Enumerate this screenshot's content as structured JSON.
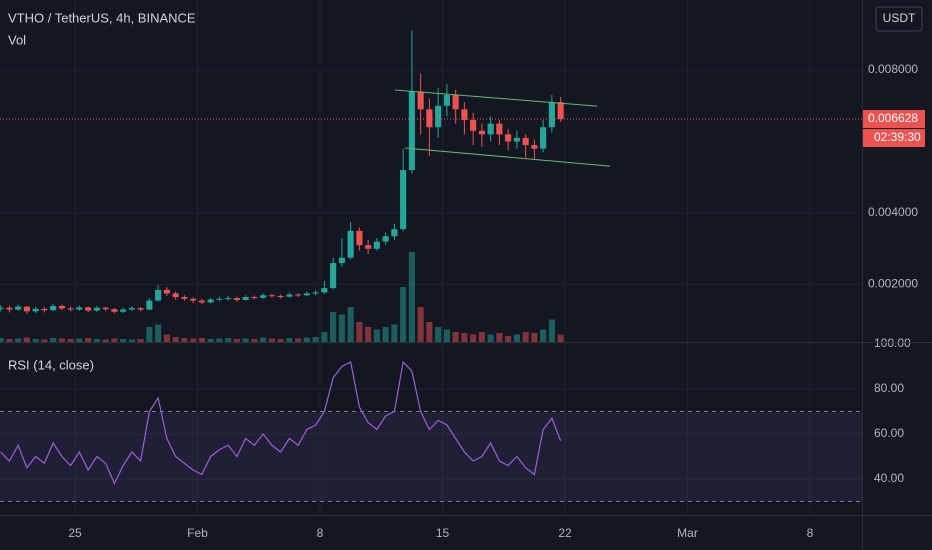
{
  "header": {
    "symbol": "VTHO / TetherUS, 4h, BINANCE",
    "volume_label": "Vol",
    "currency": "USDT"
  },
  "chart_data": [
    {
      "type": "candlestick",
      "x": [
        20.75,
        21.25,
        21.75,
        22.25,
        22.75,
        23.25,
        23.75,
        24.25,
        24.75,
        25.25,
        25.75,
        26.25,
        26.75,
        27.25,
        27.75,
        28.25,
        28.75,
        29.25,
        29.75,
        30.25,
        30.75,
        31.25,
        31.75,
        32.25,
        32.75,
        33.25,
        33.75,
        34.25,
        34.75,
        35.25,
        35.75,
        36.25,
        36.75,
        37.25,
        37.75,
        38.25,
        38.75,
        39.25,
        39.75,
        40.25,
        40.75,
        41.25,
        41.75,
        42.25,
        42.75,
        43.25,
        43.75,
        44.25,
        44.75,
        45.25,
        45.75,
        46.25,
        46.75,
        47.25,
        47.75,
        48.25,
        48.75,
        49.25,
        49.75,
        50.25,
        50.75,
        51.25,
        51.75,
        52.25,
        52.75
      ],
      "open": [
        0.00132,
        0.00135,
        0.0013,
        0.00138,
        0.00125,
        0.00132,
        0.00128,
        0.0014,
        0.00133,
        0.0013,
        0.00136,
        0.00127,
        0.00135,
        0.00131,
        0.00124,
        0.0013,
        0.00134,
        0.0013,
        0.00155,
        0.00185,
        0.00175,
        0.00165,
        0.0016,
        0.00155,
        0.0015,
        0.00158,
        0.0016,
        0.00162,
        0.00157,
        0.00165,
        0.00163,
        0.0017,
        0.00168,
        0.00166,
        0.00172,
        0.0017,
        0.00175,
        0.00178,
        0.0019,
        0.0026,
        0.00275,
        0.0035,
        0.0031,
        0.003,
        0.0032,
        0.00335,
        0.00355,
        0.0052,
        0.0074,
        0.0069,
        0.0064,
        0.007,
        0.0073,
        0.0069,
        0.0066,
        0.0063,
        0.0062,
        0.0065,
        0.0062,
        0.006,
        0.0061,
        0.0059,
        0.0058,
        0.0064,
        0.0071
      ],
      "high": [
        0.00142,
        0.0014,
        0.00144,
        0.0014,
        0.00138,
        0.00136,
        0.00146,
        0.00144,
        0.00138,
        0.00141,
        0.00139,
        0.0014,
        0.00138,
        0.00134,
        0.00135,
        0.00139,
        0.00137,
        0.00162,
        0.00198,
        0.00192,
        0.0018,
        0.0017,
        0.00164,
        0.0016,
        0.00163,
        0.00166,
        0.00168,
        0.00166,
        0.0017,
        0.00169,
        0.00175,
        0.00174,
        0.00172,
        0.00177,
        0.00176,
        0.0018,
        0.00184,
        0.0021,
        0.00275,
        0.0033,
        0.00375,
        0.0036,
        0.00325,
        0.0033,
        0.00345,
        0.0037,
        0.0058,
        0.0091,
        0.0079,
        0.0072,
        0.0075,
        0.0076,
        0.00745,
        0.0071,
        0.0068,
        0.0065,
        0.0067,
        0.0066,
        0.00635,
        0.0063,
        0.0062,
        0.00605,
        0.0066,
        0.0073,
        0.00725
      ],
      "low": [
        0.00125,
        0.00122,
        0.00127,
        0.00118,
        0.0012,
        0.00122,
        0.00126,
        0.00128,
        0.00125,
        0.00127,
        0.00122,
        0.00124,
        0.00126,
        0.00119,
        0.0012,
        0.00127,
        0.00125,
        0.00128,
        0.00152,
        0.00168,
        0.00158,
        0.00154,
        0.00148,
        0.00145,
        0.00147,
        0.00154,
        0.00156,
        0.00152,
        0.00155,
        0.00158,
        0.0016,
        0.00163,
        0.00161,
        0.00163,
        0.00165,
        0.00167,
        0.0017,
        0.00174,
        0.00188,
        0.0025,
        0.0027,
        0.00295,
        0.00285,
        0.00295,
        0.0031,
        0.00325,
        0.0035,
        0.0051,
        0.0062,
        0.0056,
        0.0061,
        0.0067,
        0.0065,
        0.0062,
        0.0059,
        0.00585,
        0.006,
        0.0059,
        0.00575,
        0.0058,
        0.00555,
        0.0055,
        0.0057,
        0.00625,
        0.00655
      ],
      "close": [
        0.00135,
        0.0013,
        0.00138,
        0.00125,
        0.00132,
        0.00128,
        0.0014,
        0.00133,
        0.0013,
        0.00136,
        0.00127,
        0.00135,
        0.00131,
        0.00124,
        0.0013,
        0.00134,
        0.0013,
        0.00155,
        0.00185,
        0.00175,
        0.00165,
        0.0016,
        0.00155,
        0.0015,
        0.00158,
        0.0016,
        0.00162,
        0.00157,
        0.00165,
        0.00163,
        0.0017,
        0.00168,
        0.00166,
        0.00172,
        0.0017,
        0.00175,
        0.00178,
        0.0019,
        0.0026,
        0.00275,
        0.0035,
        0.0031,
        0.003,
        0.0032,
        0.00335,
        0.00355,
        0.0052,
        0.0074,
        0.0069,
        0.0064,
        0.007,
        0.0073,
        0.0069,
        0.0066,
        0.0063,
        0.0062,
        0.0065,
        0.0062,
        0.006,
        0.0061,
        0.0059,
        0.0058,
        0.0064,
        0.0071,
        0.006628
      ],
      "volume": [
        8,
        6,
        7,
        9,
        6,
        5,
        8,
        7,
        6,
        7,
        8,
        6,
        5,
        7,
        6,
        5,
        6,
        30,
        35,
        15,
        10,
        8,
        7,
        8,
        6,
        7,
        8,
        6,
        7,
        6,
        9,
        7,
        6,
        8,
        7,
        9,
        10,
        20,
        60,
        55,
        70,
        40,
        30,
        25,
        30,
        35,
        110,
        180,
        70,
        40,
        30,
        25,
        20,
        18,
        15,
        20,
        15,
        18,
        12,
        15,
        20,
        18,
        25,
        45,
        15
      ],
      "up_color": "#26a69a",
      "down_color": "#ef5350",
      "xlim": [
        20.714,
        69.97
      ],
      "xticks": [
        {
          "value": 25,
          "label": "25"
        },
        {
          "value": 32,
          "label": "Feb"
        },
        {
          "value": 39,
          "label": "8"
        },
        {
          "value": 46,
          "label": "15"
        },
        {
          "value": 53,
          "label": "22"
        },
        {
          "value": 60,
          "label": "Mar"
        },
        {
          "value": 67,
          "label": "8"
        }
      ],
      "ylim": [
        0.000392,
        0.009958
      ],
      "yticks": [
        {
          "value": 0.008,
          "label": "0.008000"
        },
        {
          "value": 0.004,
          "label": "0.004000"
        },
        {
          "value": 0.002,
          "label": "0.002000"
        }
      ],
      "last_price": {
        "value": 0.006628,
        "label": "0.006628"
      },
      "countdown": "02:39:30",
      "trendlines": [
        {
          "x": [
            43.29,
            54.83
          ],
          "y": [
            0.00744,
            0.00699
          ],
          "color": "#66bb6a"
        },
        {
          "x": [
            43.86,
            55.57
          ],
          "y": [
            0.00582,
            0.00531
          ],
          "color": "#66bb6a"
        }
      ]
    },
    {
      "type": "line",
      "title": "RSI (14, close)",
      "color": "#9c5fd6",
      "values": [
        52,
        48,
        55,
        45,
        50,
        47,
        56,
        50,
        46,
        52,
        44,
        50,
        47,
        38,
        46,
        52,
        48,
        70,
        76,
        58,
        50,
        47,
        44,
        42,
        50,
        53,
        55,
        50,
        58,
        55,
        60,
        55,
        52,
        58,
        55,
        62,
        64,
        70,
        85,
        90,
        92,
        72,
        65,
        62,
        68,
        70,
        92,
        88,
        70,
        62,
        66,
        64,
        58,
        52,
        48,
        50,
        56,
        48,
        46,
        50,
        45,
        42,
        62,
        67,
        57
      ],
      "ylim": [
        24,
        100.9
      ],
      "yticks": [
        {
          "value": 100,
          "label": "100.00"
        },
        {
          "value": 80,
          "label": "80.00"
        },
        {
          "value": 60,
          "label": "60.00"
        },
        {
          "value": 40,
          "label": "40.00"
        }
      ],
      "bands": [
        30,
        70
      ]
    }
  ]
}
